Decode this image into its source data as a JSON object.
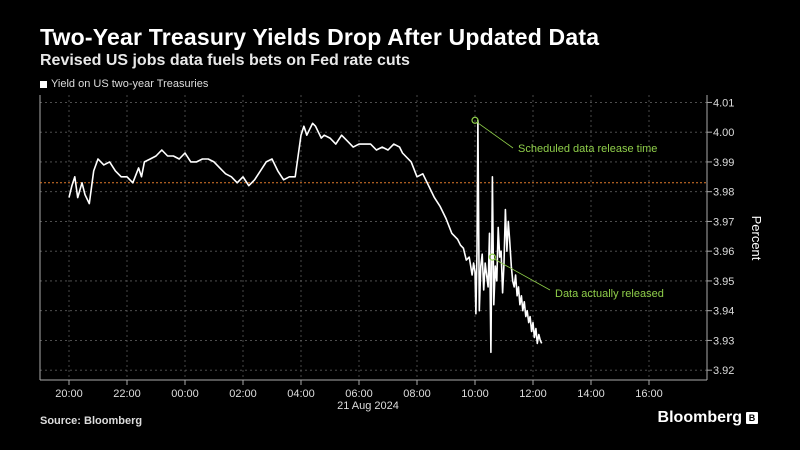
{
  "header": {
    "title": "Two-Year Treasury Yields Drop After Updated Data",
    "subtitle": "Revised US jobs data fuels bets on Fed rate cuts"
  },
  "footer": {
    "source": "Source: Bloomberg",
    "brand": "Bloomberg",
    "brand_icon": "bloomberg-logo-icon"
  },
  "colors": {
    "background": "#000000",
    "series": "#ffffff",
    "reference_line": "#e07a2a",
    "annotation": "#8fce4a",
    "grid": "#5a5a5a"
  },
  "chart_data": {
    "type": "line",
    "title": "Two-Year Treasury Yields Drop After Updated Data",
    "subtitle": "Revised US jobs data fuels bets on Fed rate cuts",
    "ylabel": "Percent",
    "xlabel": "21 Aug 2024",
    "ylim": [
      3.92,
      4.01
    ],
    "xlim": [
      19.0,
      18.5
    ],
    "y_axis_side": "right",
    "grid": "dashed vertical and horizontal",
    "legend": "top-left",
    "x_ticks": [
      {
        "label": "20:00",
        "h": 20
      },
      {
        "label": "22:00",
        "h": 22
      },
      {
        "label": "00:00",
        "h": 24
      },
      {
        "label": "02:00",
        "h": 26
      },
      {
        "label": "04:00",
        "h": 28
      },
      {
        "label": "06:00",
        "h": 30
      },
      {
        "label": "08:00",
        "h": 32
      },
      {
        "label": "10:00",
        "h": 34
      },
      {
        "label": "12:00",
        "h": 36
      },
      {
        "label": "14:00",
        "h": 38
      },
      {
        "label": "16:00",
        "h": 40
      }
    ],
    "y_ticks": [
      "4.01",
      "4.00",
      "3.99",
      "3.98",
      "3.97",
      "3.96",
      "3.95",
      "3.94",
      "3.93",
      "3.92"
    ],
    "reference_line": 3.983,
    "series": [
      {
        "name": "Yield on US two-year Treasuries",
        "x": [
          20.0,
          20.1,
          20.2,
          20.3,
          20.45,
          20.55,
          20.7,
          20.85,
          21.0,
          21.2,
          21.4,
          21.6,
          21.8,
          22.0,
          22.2,
          22.4,
          22.5,
          22.6,
          22.8,
          23.0,
          23.2,
          23.4,
          23.6,
          23.8,
          24.0,
          24.2,
          24.4,
          24.6,
          24.8,
          25.0,
          25.2,
          25.4,
          25.6,
          25.8,
          26.0,
          26.2,
          26.4,
          26.6,
          26.8,
          27.0,
          27.2,
          27.4,
          27.6,
          27.8,
          28.0,
          28.1,
          28.2,
          28.3,
          28.4,
          28.5,
          28.6,
          28.7,
          28.8,
          29.0,
          29.2,
          29.4,
          29.6,
          29.8,
          30.0,
          30.2,
          30.4,
          30.6,
          30.8,
          31.0,
          31.2,
          31.4,
          31.5,
          31.6,
          31.8,
          32.0,
          32.2,
          32.4,
          32.6,
          32.8,
          33.0,
          33.2,
          33.4,
          33.5,
          33.6,
          33.7,
          33.8,
          33.85,
          33.9,
          33.95,
          34.0,
          34.03,
          34.07,
          34.1,
          34.15,
          34.2,
          34.25,
          34.3,
          34.35,
          34.4,
          34.45,
          34.5,
          34.55,
          34.6,
          34.65,
          34.7,
          34.75,
          34.8,
          34.85,
          34.9,
          34.95,
          35.0,
          35.05,
          35.1,
          35.15,
          35.2,
          35.25,
          35.3,
          35.35,
          35.4,
          35.45,
          35.5,
          35.55,
          35.6,
          35.65,
          35.7,
          35.75,
          35.8,
          35.85,
          35.9,
          35.95,
          36.0,
          36.05,
          36.1,
          36.15,
          36.2,
          36.25,
          36.3
        ],
        "y": [
          3.978,
          3.982,
          3.985,
          3.978,
          3.983,
          3.979,
          3.976,
          3.987,
          3.991,
          3.989,
          3.99,
          3.987,
          3.985,
          3.985,
          3.983,
          3.988,
          3.985,
          3.99,
          3.991,
          3.992,
          3.994,
          3.992,
          3.992,
          3.991,
          3.993,
          3.99,
          3.99,
          3.991,
          3.991,
          3.99,
          3.988,
          3.986,
          3.985,
          3.983,
          3.985,
          3.982,
          3.984,
          3.987,
          3.99,
          3.991,
          3.987,
          3.984,
          3.985,
          3.985,
          3.999,
          4.002,
          3.999,
          4.001,
          4.003,
          4.002,
          4.0,
          3.998,
          3.999,
          3.998,
          3.996,
          3.999,
          3.997,
          3.995,
          3.996,
          3.996,
          3.996,
          3.994,
          3.995,
          3.994,
          3.996,
          3.995,
          3.993,
          3.992,
          3.99,
          3.985,
          3.986,
          3.982,
          3.978,
          3.975,
          3.971,
          3.966,
          3.964,
          3.962,
          3.961,
          3.957,
          3.958,
          3.955,
          3.952,
          3.956,
          3.953,
          3.939,
          3.96,
          4.004,
          3.94,
          3.955,
          3.959,
          3.947,
          3.956,
          3.952,
          3.948,
          3.966,
          3.926,
          3.985,
          3.942,
          3.955,
          3.95,
          3.968,
          3.958,
          3.96,
          3.946,
          3.956,
          3.974,
          3.96,
          3.97,
          3.963,
          3.955,
          3.95,
          3.948,
          3.952,
          3.945,
          3.948,
          3.942,
          3.945,
          3.94,
          3.943,
          3.938,
          3.94,
          3.936,
          3.938,
          3.933,
          3.936,
          3.931,
          3.934,
          3.929,
          3.932,
          3.93,
          3.929
        ],
        "color": "#ffffff"
      }
    ],
    "annotations": [
      {
        "text": "Scheduled data release time",
        "x": 34.0,
        "y": 4.004
      },
      {
        "text": "Data actually released",
        "x": 34.6,
        "y": 3.958
      }
    ]
  }
}
